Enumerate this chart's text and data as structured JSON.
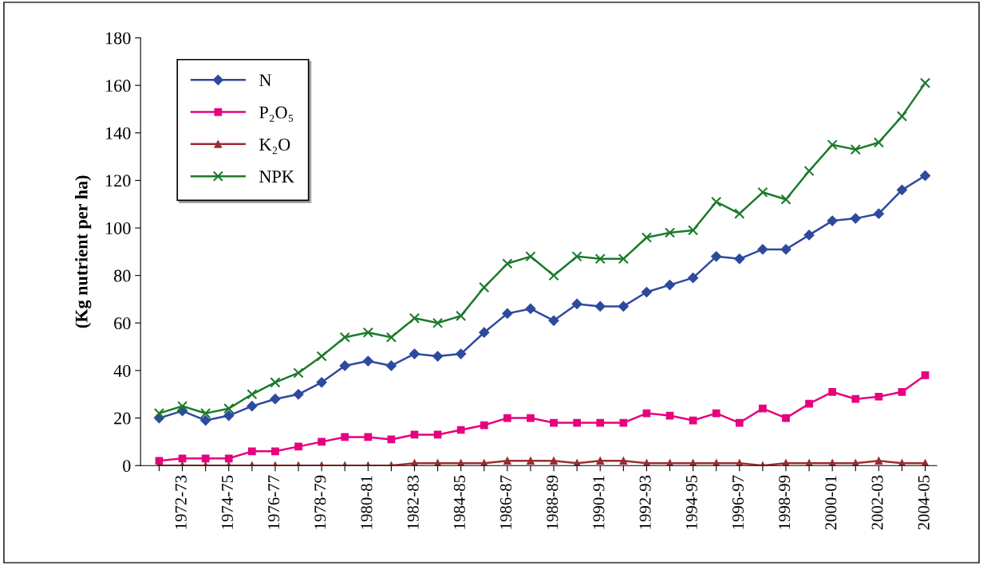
{
  "chart_data": {
    "type": "line",
    "ylabel": "(Kg nutrient per ha)",
    "categories": [
      null,
      "1972-73",
      null,
      "1974-75",
      null,
      "1976-77",
      null,
      "1978-79",
      null,
      "1980-81",
      null,
      "1982-83",
      null,
      "1984-85",
      null,
      "1986-87",
      null,
      "1988-89",
      null,
      "1990-91",
      null,
      "1992-93",
      null,
      "1994-95",
      null,
      "1996-97",
      null,
      "1998-99",
      null,
      "2000-01",
      null,
      "2002-03",
      null,
      "2004-05"
    ],
    "series": [
      {
        "name": "N",
        "color": "#2e4a9e",
        "marker": "diamond",
        "values": [
          20,
          23,
          19,
          21,
          25,
          28,
          30,
          35,
          42,
          44,
          42,
          47,
          46,
          47,
          56,
          64,
          66,
          61,
          68,
          67,
          67,
          73,
          76,
          79,
          88,
          87,
          91,
          91,
          97,
          103,
          104,
          106,
          116,
          122
        ]
      },
      {
        "name": "P₂O₅",
        "color": "#e6007e",
        "marker": "square",
        "values": [
          2,
          3,
          3,
          3,
          6,
          6,
          8,
          10,
          12,
          12,
          11,
          13,
          13,
          15,
          17,
          20,
          20,
          18,
          18,
          18,
          18,
          22,
          21,
          19,
          22,
          18,
          24,
          20,
          26,
          31,
          28,
          29,
          31,
          38
        ]
      },
      {
        "name": "K₂O",
        "color": "#9b2d30",
        "marker": "triangle",
        "values": [
          0,
          0,
          0,
          0,
          0,
          0,
          0,
          0,
          0,
          0,
          0,
          1,
          1,
          1,
          1,
          2,
          2,
          2,
          1,
          2,
          2,
          1,
          1,
          1,
          1,
          1,
          0,
          1,
          1,
          1,
          1,
          2,
          1,
          1
        ]
      },
      {
        "name": "NPK",
        "color": "#1a7a2a",
        "marker": "cross",
        "values": [
          22,
          25,
          22,
          24,
          30,
          35,
          39,
          46,
          54,
          56,
          54,
          62,
          60,
          63,
          75,
          85,
          88,
          80,
          88,
          87,
          87,
          96,
          98,
          99,
          111,
          106,
          115,
          112,
          124,
          135,
          133,
          136,
          147,
          161
        ]
      }
    ],
    "ylim": [
      0,
      180
    ],
    "yticks": [
      0,
      20,
      40,
      60,
      80,
      100,
      120,
      140,
      160,
      180
    ],
    "grid": false,
    "legend": "top left",
    "line_style": "solid"
  }
}
